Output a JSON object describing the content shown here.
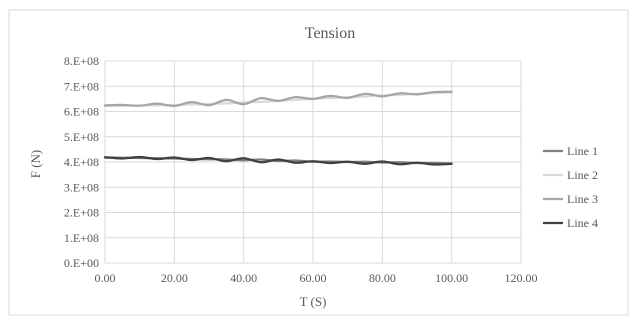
{
  "chart_data": {
    "type": "line",
    "title": "Tension",
    "xlabel": "T (S)",
    "ylabel": "F (N)",
    "xlim": [
      0,
      120
    ],
    "ylim": [
      0,
      800000000
    ],
    "x_ticks": [
      0,
      20,
      40,
      60,
      80,
      100,
      120
    ],
    "x_tick_labels": [
      "0.00",
      "20.00",
      "40.00",
      "60.00",
      "80.00",
      "100.00",
      "120.00"
    ],
    "y_ticks": [
      0,
      100000000,
      200000000,
      300000000,
      400000000,
      500000000,
      600000000,
      700000000,
      800000000
    ],
    "y_tick_labels": [
      "0.E+00",
      "1.E+08",
      "2.E+08",
      "3.E+08",
      "4.E+08",
      "5.E+08",
      "6.E+08",
      "7.E+08",
      "8.E+08"
    ],
    "grid": true,
    "legend_position": "right",
    "x": [
      0,
      5,
      10,
      15,
      20,
      25,
      30,
      35,
      40,
      45,
      50,
      55,
      60,
      65,
      70,
      75,
      80,
      85,
      90,
      95,
      100
    ],
    "series": [
      {
        "name": "Line 1",
        "color": "#7f7f7f",
        "values": [
          418000000,
          417000000,
          416000000,
          415000000,
          414000000,
          412000000,
          411000000,
          410000000,
          407000000,
          410000000,
          404000000,
          406000000,
          401000000,
          402000000,
          400000000,
          401000000,
          398000000,
          399000000,
          396000000,
          396000000,
          394000000
        ]
      },
      {
        "name": "Line 2",
        "color": "#d9d9d9",
        "values": [
          622000000,
          623000000,
          624000000,
          625000000,
          626000000,
          628000000,
          630000000,
          632000000,
          636000000,
          638000000,
          642000000,
          646000000,
          650000000,
          654000000,
          656000000,
          660000000,
          664000000,
          666000000,
          670000000,
          673000000,
          676000000
        ]
      },
      {
        "name": "Line 3",
        "color": "#a6a6a6",
        "values": [
          624000000,
          626000000,
          623000000,
          631000000,
          622000000,
          637000000,
          625000000,
          646000000,
          629000000,
          653000000,
          642000000,
          657000000,
          650000000,
          662000000,
          654000000,
          670000000,
          660000000,
          672000000,
          668000000,
          677000000,
          678000000
        ]
      },
      {
        "name": "Line 4",
        "color": "#404040",
        "values": [
          419000000,
          414000000,
          420000000,
          412000000,
          418000000,
          408000000,
          416000000,
          403000000,
          415000000,
          399000000,
          410000000,
          397000000,
          403000000,
          396000000,
          401000000,
          393000000,
          402000000,
          391000000,
          397000000,
          390000000,
          393000000
        ]
      }
    ]
  },
  "colors": {
    "frame": "#d9d9d9",
    "grid": "#d9d9d9",
    "text": "#595959"
  }
}
